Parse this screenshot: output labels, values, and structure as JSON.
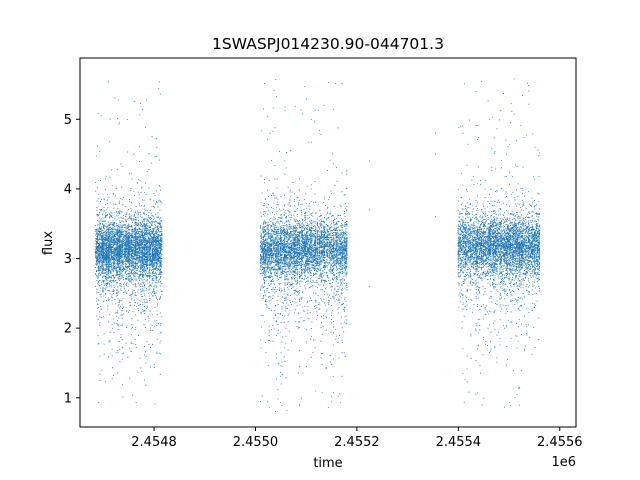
{
  "chart_data": {
    "type": "scatter",
    "title": "1SWASPJ014230.90-044701.3",
    "xlabel": "time",
    "ylabel": "flux",
    "x_offset_label": "1e6",
    "xlim": [
      2454654,
      2455632
    ],
    "ylim": [
      0.58,
      5.88
    ],
    "x_ticks": [
      2454800,
      2455000,
      2455200,
      2455400,
      2455600
    ],
    "x_tick_labels": [
      "2.4548",
      "2.4550",
      "2.4552",
      "2.4554",
      "2.4556"
    ],
    "y_ticks": [
      1,
      2,
      3,
      4,
      5
    ],
    "y_tick_labels": [
      "1",
      "2",
      "3",
      "4",
      "5"
    ],
    "grid": false,
    "marker_color": "#1f77b4",
    "marker_size": "tiny",
    "series": [
      {
        "observing_seasons": [
          {
            "x_range": [
              2454685,
              2454815
            ],
            "y_center": 3.15,
            "y_core_spread": [
              2.75,
              3.6
            ],
            "y_extent": [
              0.85,
              5.55
            ]
          },
          {
            "x_range": [
              2455010,
              2455180
            ],
            "y_center": 3.15,
            "y_core_spread": [
              2.7,
              3.6
            ],
            "y_extent": [
              0.8,
              5.55
            ]
          },
          {
            "x_range": [
              2455400,
              2455560
            ],
            "y_center": 3.2,
            "y_core_spread": [
              2.75,
              3.6
            ],
            "y_extent": [
              0.85,
              5.55
            ]
          }
        ],
        "isolated_points": [
          {
            "x": 2455225,
            "y": 4.4
          },
          {
            "x": 2455225,
            "y": 3.7
          },
          {
            "x": 2455225,
            "y": 2.6
          },
          {
            "x": 2455355,
            "y": 4.8
          },
          {
            "x": 2455355,
            "y": 4.5
          },
          {
            "x": 2455355,
            "y": 3.6
          },
          {
            "x": 2455062,
            "y": 0.82
          },
          {
            "x": 2455040,
            "y": 5.57
          },
          {
            "x": 2455135,
            "y": 5.2
          },
          {
            "x": 2455510,
            "y": 5.58
          }
        ]
      }
    ]
  }
}
